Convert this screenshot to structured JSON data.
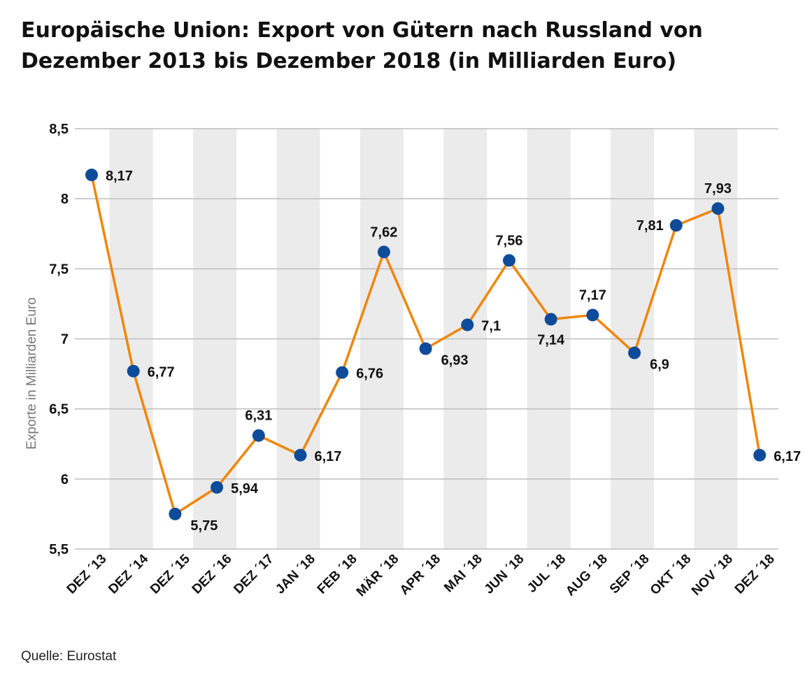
{
  "title_lines": [
    "Europäische Union: Export von Gütern nach Russland von",
    "Dezember 2013 bis Dezember 2018 (in Milliarden Euro)"
  ],
  "source": "Quelle: Eurostat",
  "colors": {
    "line": "#f0860a",
    "marker": "#0e4c9a",
    "band": "#ebebeb",
    "grid": "#bdbdbd"
  },
  "chart_data": {
    "type": "line",
    "title": "Europäische Union: Export von Gütern nach Russland von Dezember 2013 bis Dezember 2018 (in Milliarden Euro)",
    "xlabel": "",
    "ylabel": "Exporte in Milliarden Euro",
    "ylim": [
      5.5,
      8.5
    ],
    "yticks": [
      5.5,
      6,
      6.5,
      7,
      7.5,
      8,
      8.5
    ],
    "ytick_labels": [
      "5,5",
      "6",
      "6,5",
      "7",
      "7,5",
      "8",
      "8,5"
    ],
    "grid": "horizontal",
    "alternating_bands": true,
    "categories": [
      "DEZ ´13",
      "DEZ ´14",
      "DEZ ´15",
      "DEZ ´16",
      "DEZ ´17",
      "JAN ´18",
      "FEB ´18",
      "MÄR ´18",
      "APR ´18",
      "MAI ´18",
      "JUN ´18",
      "JUL ´18",
      "AUG ´18",
      "SEP ´18",
      "OKT ´18",
      "NOV ´18",
      "DEZ ´18"
    ],
    "series": [
      {
        "values": [
          8.17,
          6.77,
          5.75,
          5.94,
          6.31,
          6.17,
          6.76,
          7.62,
          6.93,
          7.1,
          7.56,
          7.14,
          7.17,
          6.9,
          7.81,
          7.93,
          6.17
        ],
        "labels": [
          "8,17",
          "6,77",
          "5,75",
          "5,94",
          "6,31",
          "6,17",
          "6,76",
          "7,62",
          "6,93",
          "7,1",
          "7,56",
          "7,14",
          "7,17",
          "6,9",
          "7,81",
          "7,93",
          "6,17"
        ]
      }
    ]
  }
}
